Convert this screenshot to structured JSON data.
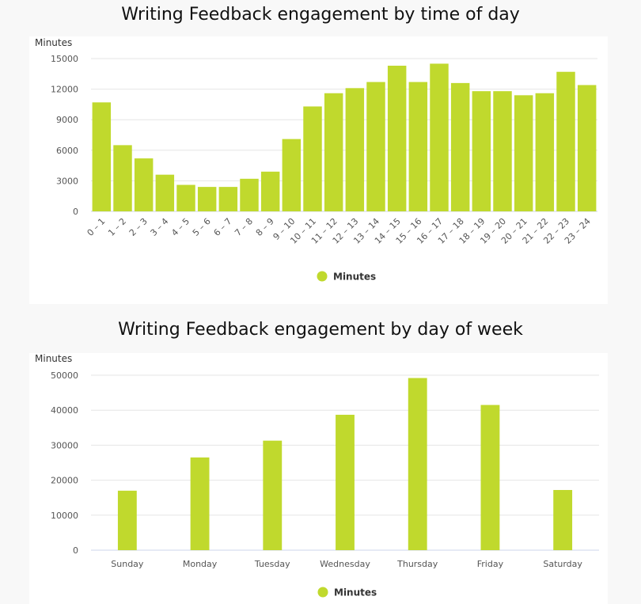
{
  "chart_data": [
    {
      "type": "bar",
      "title": "Writing Feedback engagement by time of day",
      "ylabel": "Minutes",
      "ylim": [
        0,
        15000
      ],
      "yticks": [
        0,
        3000,
        6000,
        9000,
        12000,
        15000
      ],
      "grid": true,
      "legend_position": "bottom-center",
      "color": "#c0d92d",
      "categories": [
        "0 – 1",
        "1 – 2",
        "2 – 3",
        "3 – 4",
        "4 – 5",
        "5 – 6",
        "6 – 7",
        "7 – 8",
        "8 – 9",
        "9 – 10",
        "10 – 11",
        "11 – 12",
        "12 – 13",
        "13 – 14",
        "14 – 15",
        "15 – 16",
        "16 – 17",
        "17 – 18",
        "18 – 19",
        "19 – 20",
        "20 – 21",
        "21 – 22",
        "22 – 23",
        "23 – 24"
      ],
      "series": [
        {
          "name": "Minutes",
          "values": [
            10700,
            6500,
            5200,
            3600,
            2600,
            2400,
            2400,
            3200,
            3900,
            7100,
            10300,
            11600,
            12100,
            12700,
            14300,
            12700,
            14500,
            12600,
            11800,
            11800,
            11400,
            11600,
            13700,
            12400
          ]
        }
      ]
    },
    {
      "type": "bar",
      "title": "Writing Feedback engagement by day of week",
      "ylabel": "Minutes",
      "ylim": [
        0,
        50000
      ],
      "yticks": [
        0,
        10000,
        20000,
        30000,
        40000,
        50000
      ],
      "grid": true,
      "legend_position": "bottom-center",
      "color": "#c0d92d",
      "categories": [
        "Sunday",
        "Monday",
        "Tuesday",
        "Wednesday",
        "Thursday",
        "Friday",
        "Saturday"
      ],
      "series": [
        {
          "name": "Minutes",
          "values": [
            17000,
            26500,
            31300,
            38700,
            49200,
            41500,
            17200
          ]
        }
      ]
    }
  ]
}
